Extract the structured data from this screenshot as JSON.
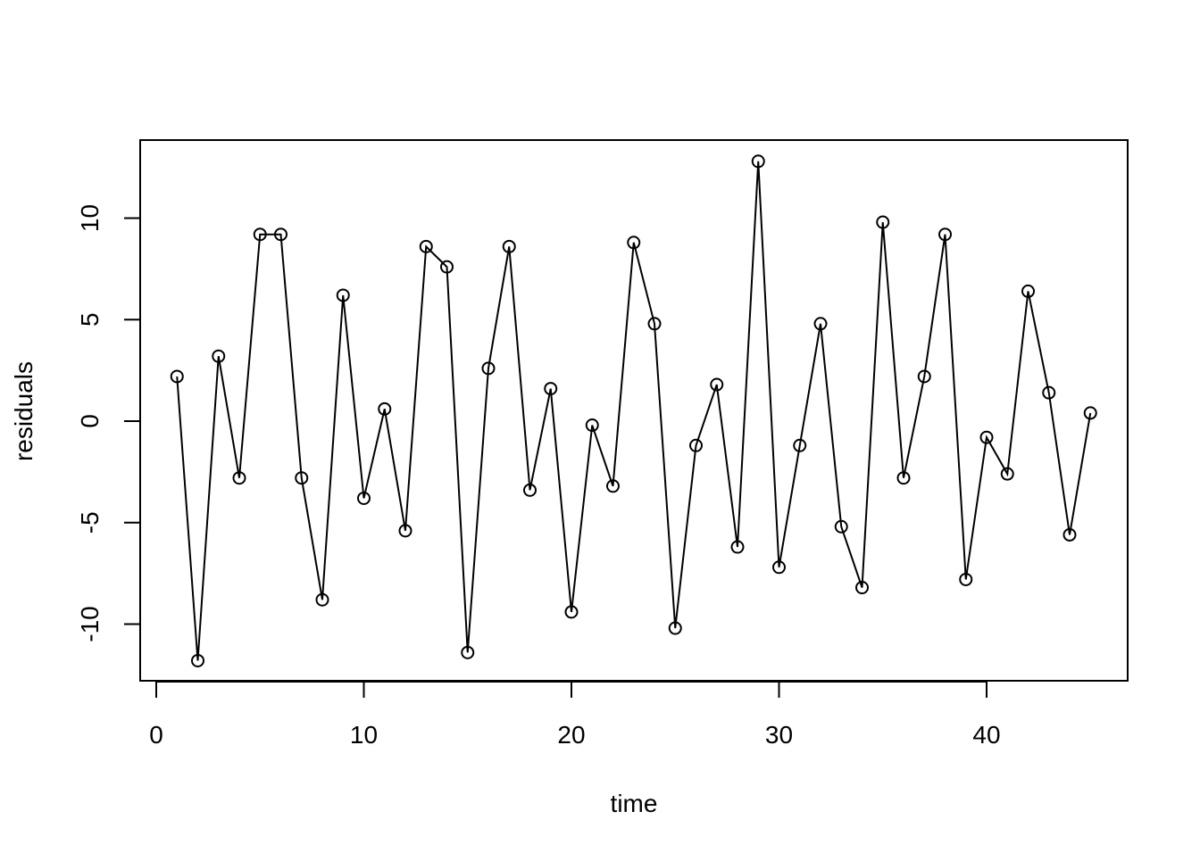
{
  "chart_data": {
    "type": "line",
    "title": "",
    "xlabel": "time",
    "ylabel": "residuals",
    "xlim": [
      0,
      46
    ],
    "ylim": [
      -13,
      13.5
    ],
    "x_ticks": [
      "0",
      "10",
      "20",
      "30",
      "40"
    ],
    "y_ticks": [
      "-10",
      "-5",
      "0",
      "5",
      "10"
    ],
    "markers": "open-circle",
    "grid": false,
    "legend": "none",
    "series": [
      {
        "x": [
          1,
          2,
          3,
          4,
          5,
          6,
          7,
          8,
          9,
          10,
          11,
          12,
          13,
          14,
          15,
          16,
          17,
          18,
          19,
          20,
          21,
          22,
          23,
          24,
          25,
          26,
          27,
          28,
          29,
          30,
          31,
          32,
          33,
          34,
          35,
          36,
          37,
          38,
          39,
          40,
          41,
          42,
          43,
          44,
          45
        ],
        "values": [
          2.2,
          -11.8,
          3.2,
          -2.8,
          9.2,
          9.2,
          -2.8,
          -8.8,
          6.2,
          -3.8,
          0.6,
          -5.4,
          8.6,
          7.6,
          -11.4,
          2.6,
          8.6,
          -3.4,
          1.6,
          -9.4,
          -0.2,
          -3.2,
          8.8,
          4.8,
          -10.2,
          -1.2,
          1.8,
          -6.2,
          12.8,
          -7.2,
          -1.2,
          4.8,
          -5.2,
          -8.2,
          9.8,
          -2.8,
          2.2,
          9.2,
          -7.8,
          -0.8,
          -2.6,
          6.4,
          1.4,
          -5.6,
          0.4
        ]
      }
    ]
  }
}
